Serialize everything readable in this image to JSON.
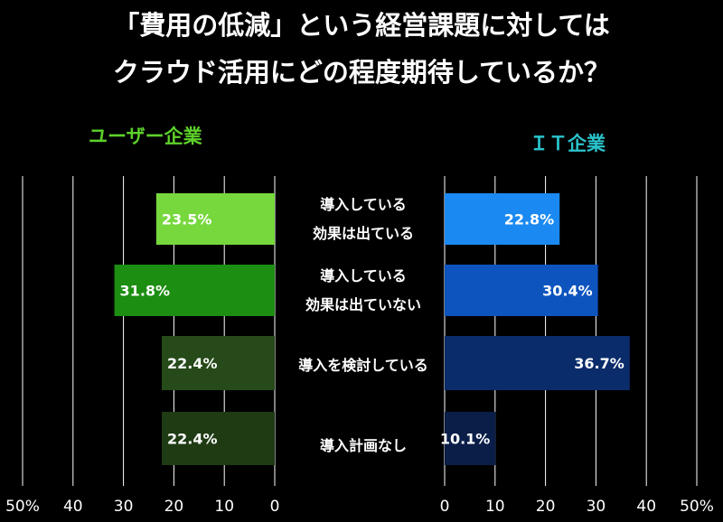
{
  "chart_data": {
    "type": "bar",
    "orientation": "horizontal-butterfly",
    "title_lines": [
      "「費用の低減」という経営課題に対しては",
      "クラウド活用にどの程度期待しているか？"
    ],
    "categories": [
      [
        "導入している",
        "効果は出ている"
      ],
      [
        "導入している",
        "効果は出ていない"
      ],
      [
        "導入を検討している"
      ],
      [
        "導入計画なし"
      ]
    ],
    "series": [
      {
        "name": "ユーザー企業",
        "side": "left",
        "values": [
          23.5,
          31.8,
          22.4,
          22.4
        ],
        "labels": [
          "23.5%",
          "31.8%",
          "22.4%",
          "22.4%"
        ],
        "colors": [
          "#76d83c",
          "#1c8e12",
          "#264a19",
          "#1f3b14"
        ],
        "label_color": "#5ed12a"
      },
      {
        "name": "ＩＴ企業",
        "side": "right",
        "values": [
          22.8,
          30.4,
          36.7,
          10.1
        ],
        "labels": [
          "22.8%",
          "30.4%",
          "36.7%",
          "10.1%"
        ],
        "colors": [
          "#1a8af2",
          "#0d54be",
          "#0b2c6a",
          "#0b1e48"
        ],
        "label_color": "#2bc4cc"
      }
    ],
    "xlim": [
      0,
      50
    ],
    "ticks": [
      0,
      10,
      20,
      30,
      40,
      50
    ],
    "left_tick_labels": [
      "50%",
      "40",
      "30",
      "20",
      "10",
      "0"
    ],
    "right_tick_labels": [
      "0",
      "10",
      "20",
      "30",
      "40",
      "50%"
    ],
    "grid": true
  }
}
